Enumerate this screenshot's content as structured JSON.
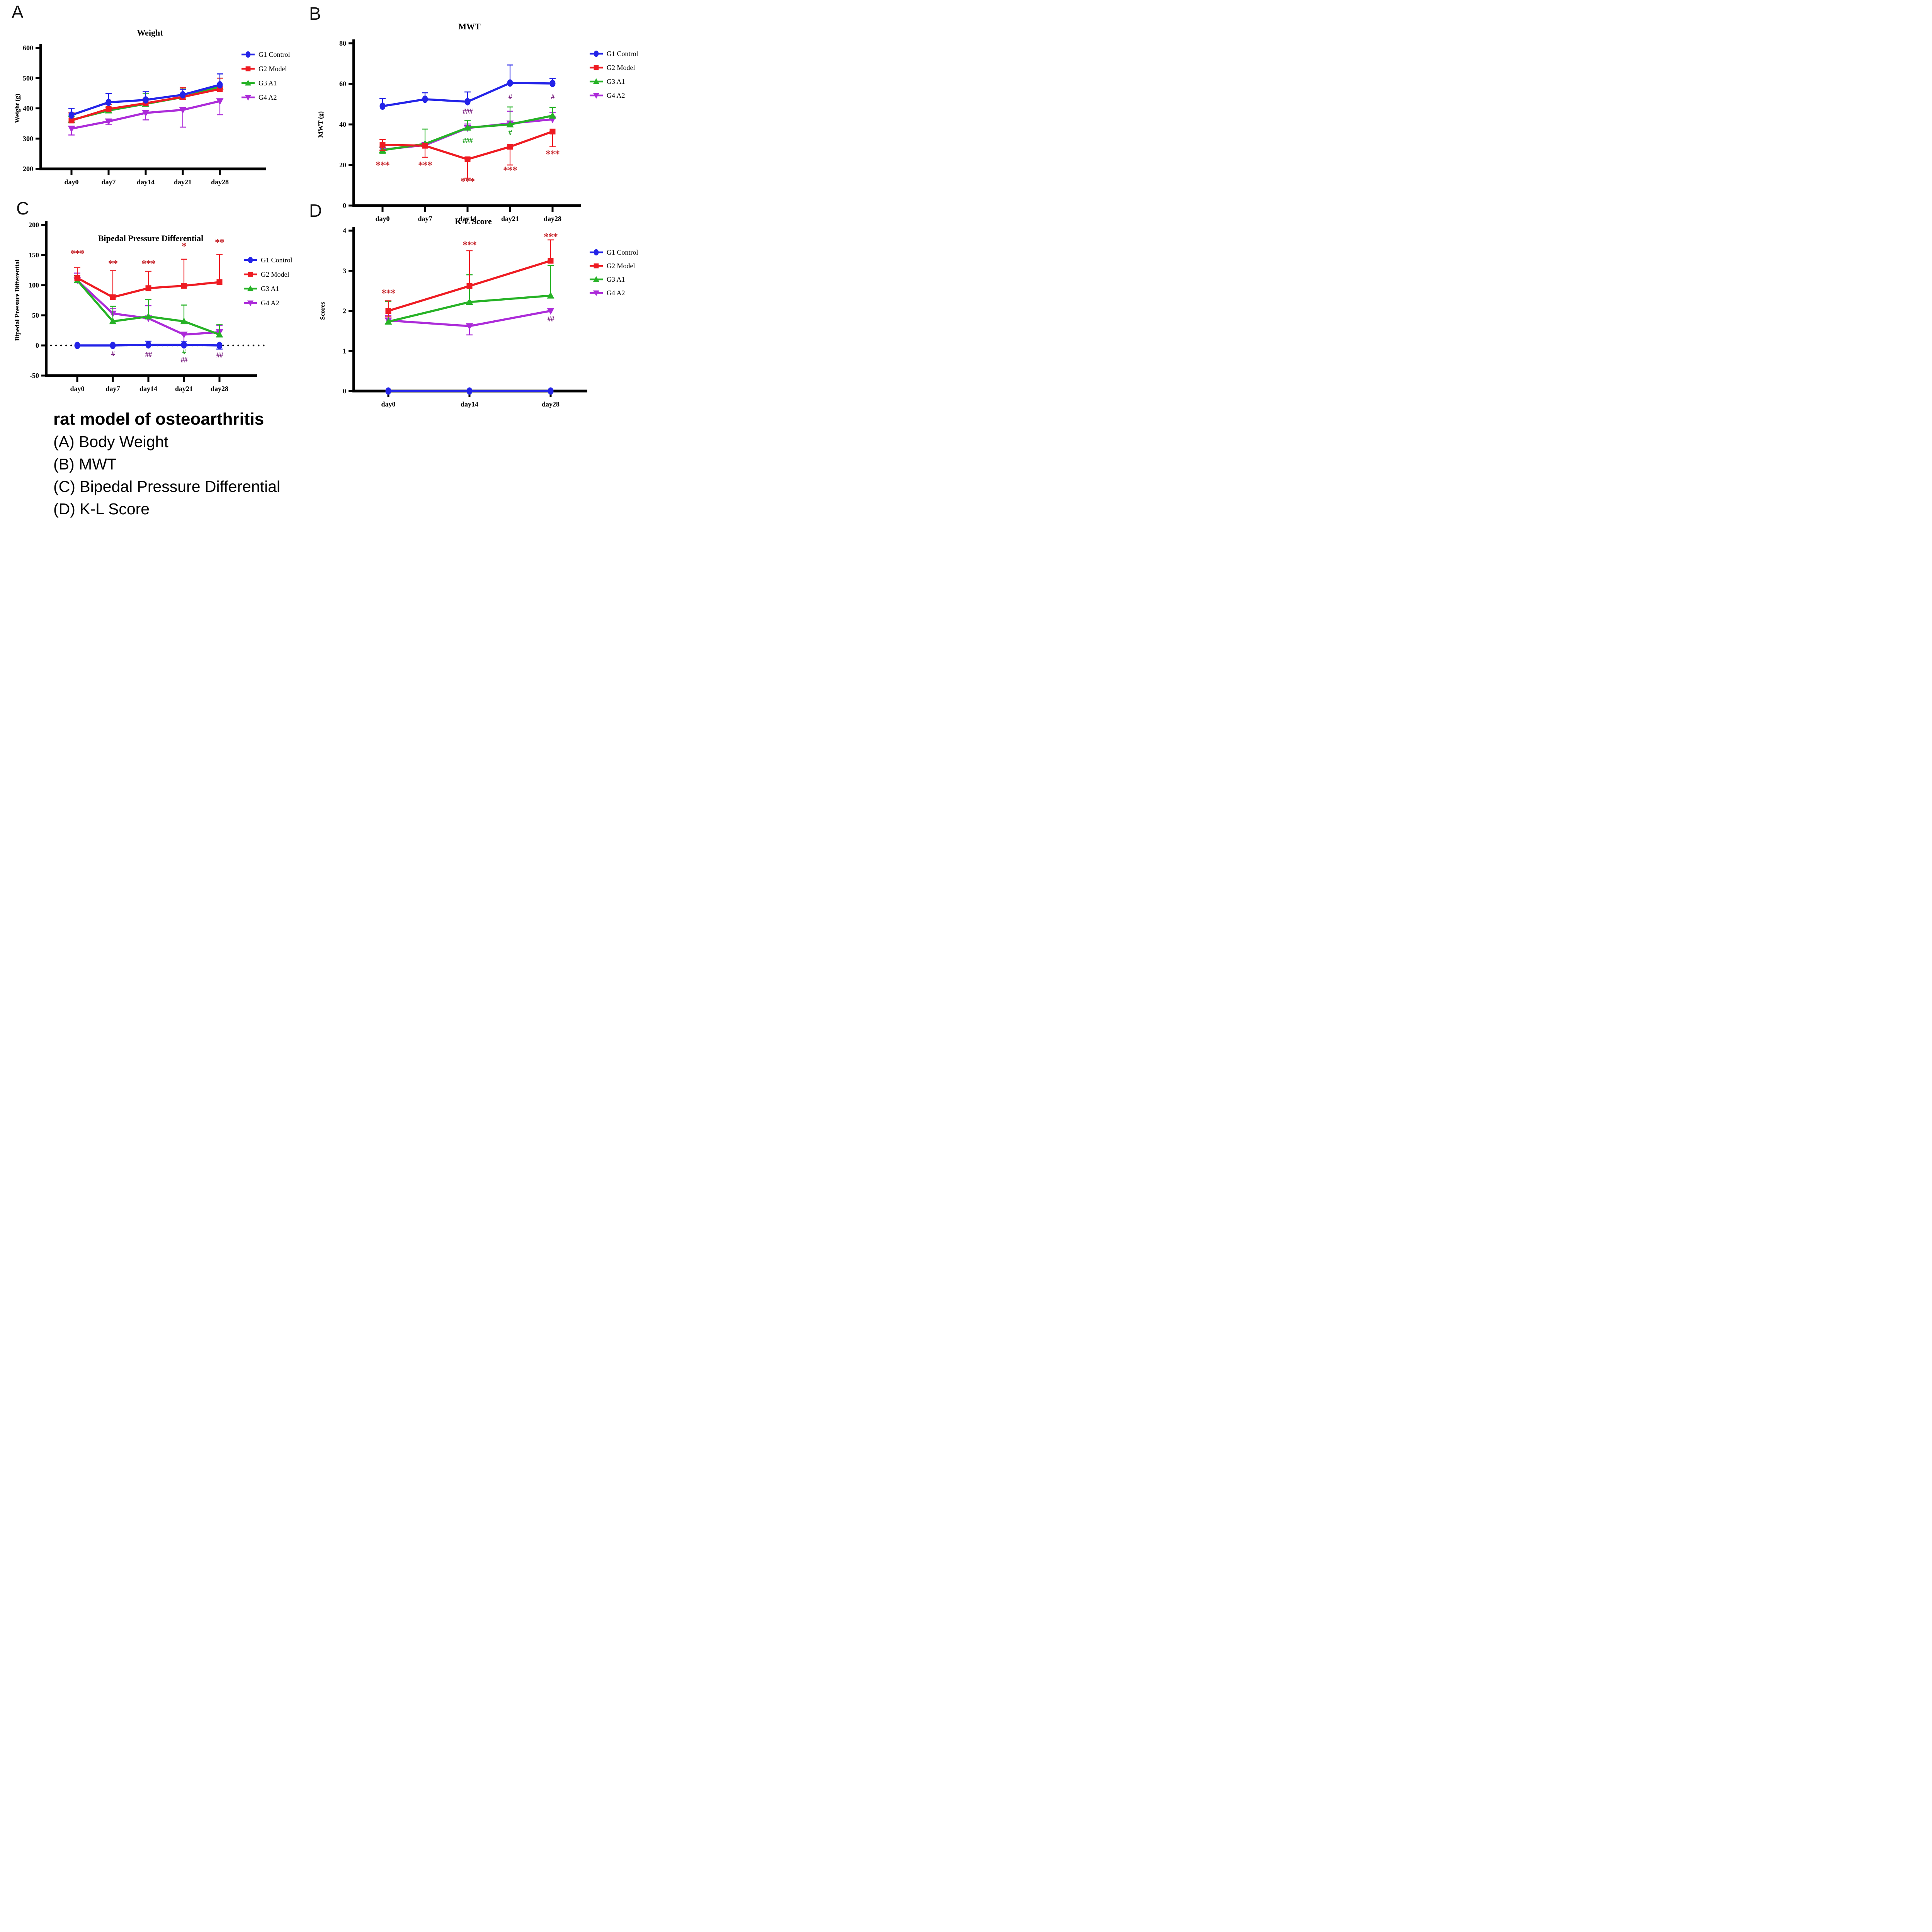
{
  "colors": {
    "blue": "#2323E8",
    "red": "#EE1B22",
    "green": "#26B226",
    "purple": "#AC2BD9",
    "star_red": "#C5262C",
    "hash_purple": "#7A2180",
    "hash_green": "#28A428",
    "axis": "#000000"
  },
  "caption": {
    "heading": "rat model of osteoarthritis",
    "lines": [
      "(A) Body Weight",
      "(B) MWT",
      "(C) Bipedal Pressure Differential",
      "(D) K-L Score"
    ]
  },
  "chart_data": [
    {
      "id": "a",
      "panel_letter": "A",
      "type": "line",
      "title": "Weight",
      "xlabel": "",
      "ylabel": "Weight (g)",
      "categories": [
        "day0",
        "day7",
        "day14",
        "day21",
        "day28"
      ],
      "ylim": [
        200,
        600
      ],
      "yticks": [
        200,
        300,
        400,
        500,
        600
      ],
      "legend_position": "right",
      "grid": false,
      "series": [
        {
          "name": "G1 Control",
          "color": "blue",
          "marker": "circle",
          "values": [
            378,
            420,
            428,
            445,
            478
          ],
          "err_up": [
            22,
            29,
            27,
            18,
            36
          ],
          "err_down": [
            0,
            0,
            0,
            0,
            0
          ]
        },
        {
          "name": "G2 Model",
          "color": "red",
          "marker": "square",
          "values": [
            360,
            398,
            417,
            438,
            464
          ],
          "err_up": [
            25,
            15,
            15,
            30,
            36
          ],
          "err_down": [
            0,
            0,
            0,
            0,
            0
          ]
        },
        {
          "name": "G3 A1",
          "color": "green",
          "marker": "triangle-up",
          "values": [
            362,
            393,
            415,
            437,
            472
          ],
          "err_up": [
            12,
            10,
            35,
            30,
            28
          ],
          "err_down": [
            0,
            0,
            0,
            0,
            0
          ]
        },
        {
          "name": "G4 A2",
          "color": "purple",
          "marker": "triangle-down",
          "values": [
            333,
            357,
            385,
            395,
            424
          ],
          "err_up": [
            0,
            0,
            0,
            0,
            0
          ],
          "err_down": [
            21,
            11,
            23,
            57,
            45
          ]
        }
      ],
      "annotations": []
    },
    {
      "id": "b",
      "panel_letter": "B",
      "type": "line",
      "title": "MWT",
      "xlabel": "",
      "ylabel": "MWT (g)",
      "categories": [
        "day0",
        "day7",
        "day14",
        "day21",
        "day28"
      ],
      "ylim": [
        0,
        80
      ],
      "yticks": [
        0,
        20,
        40,
        60,
        80
      ],
      "legend_position": "right",
      "grid": false,
      "series": [
        {
          "name": "G1 Control",
          "color": "blue",
          "marker": "circle",
          "values": [
            49,
            52.4,
            51.2,
            60.4,
            60.2
          ],
          "err_up": [
            3.8,
            3.2,
            4.8,
            8.9,
            2.4
          ],
          "err_down": [
            0,
            0,
            0,
            0,
            0
          ]
        },
        {
          "name": "G2 Model",
          "color": "red",
          "marker": "square",
          "values": [
            30,
            29.5,
            22.8,
            29,
            36.5
          ],
          "err_up": [
            2.6,
            0,
            0,
            0,
            0
          ],
          "err_down": [
            2.7,
            5.7,
            9.3,
            9,
            7.5
          ]
        },
        {
          "name": "G3 A1",
          "color": "green",
          "marker": "triangle-up",
          "values": [
            27.3,
            30.4,
            38.4,
            40,
            44.3
          ],
          "err_up": [
            1.5,
            7.3,
            3.6,
            8.6,
            4.1
          ],
          "err_down": [
            1.5,
            0,
            0,
            0,
            0
          ]
        },
        {
          "name": "G4 A2",
          "color": "purple",
          "marker": "triangle-down",
          "values": [
            27.6,
            29.8,
            38.2,
            40.5,
            42.5
          ],
          "err_up": [
            0,
            0,
            2,
            6,
            3.3
          ],
          "err_down": [
            0,
            0,
            0,
            0,
            0
          ]
        }
      ],
      "annotations": [
        {
          "x": 0,
          "y": 20,
          "text": "***",
          "color": "star_red"
        },
        {
          "x": 1,
          "y": 20,
          "text": "***",
          "color": "star_red"
        },
        {
          "x": 2,
          "y": 12,
          "text": "***",
          "color": "star_red"
        },
        {
          "x": 3,
          "y": 17.5,
          "text": "***",
          "color": "star_red"
        },
        {
          "x": 4,
          "y": 25.5,
          "text": "***",
          "color": "star_red"
        },
        {
          "x": 2,
          "y": 46.5,
          "text": "###",
          "color": "hash_purple"
        },
        {
          "x": 2,
          "y": 32,
          "text": "###",
          "color": "hash_green"
        },
        {
          "x": 3,
          "y": 53.5,
          "text": "#",
          "color": "hash_purple"
        },
        {
          "x": 3,
          "y": 36,
          "text": "#",
          "color": "hash_green"
        },
        {
          "x": 4,
          "y": 53.5,
          "text": "#",
          "color": "hash_purple"
        }
      ]
    },
    {
      "id": "c",
      "panel_letter": "C",
      "type": "line",
      "title": "Bipedal Pressure Differential",
      "xlabel": "",
      "ylabel": "Bipedal Pressure Differential",
      "categories": [
        "day0",
        "day7",
        "day14",
        "day21",
        "day28"
      ],
      "ylim": [
        -50,
        200
      ],
      "yticks": [
        -50,
        0,
        50,
        100,
        150,
        200
      ],
      "zero_line_dotted": true,
      "legend_position": "right",
      "grid": false,
      "series": [
        {
          "name": "G1 Control",
          "color": "blue",
          "marker": "circle",
          "values": [
            0,
            0,
            1,
            1,
            0
          ],
          "err_up": [
            0,
            0,
            6,
            5,
            0
          ],
          "err_down": [
            0,
            0,
            0,
            0,
            6
          ]
        },
        {
          "name": "G2 Model",
          "color": "red",
          "marker": "square",
          "values": [
            112,
            80,
            95,
            99,
            105
          ],
          "err_up": [
            17,
            44,
            28,
            44,
            46
          ],
          "err_down": [
            0,
            0,
            0,
            0,
            0
          ]
        },
        {
          "name": "G3 A1",
          "color": "green",
          "marker": "triangle-up",
          "values": [
            108,
            40,
            48,
            40,
            18
          ],
          "err_up": [
            8,
            25,
            28,
            27,
            17
          ],
          "err_down": [
            0,
            0,
            0,
            0,
            0
          ]
        },
        {
          "name": "G4 A2",
          "color": "purple",
          "marker": "triangle-down",
          "values": [
            108,
            53,
            45,
            18,
            22
          ],
          "err_up": [
            12,
            8,
            21,
            0,
            11
          ],
          "err_down": [
            0,
            0,
            0,
            16,
            0
          ]
        }
      ],
      "annotations": [
        {
          "x": 0,
          "y": 153,
          "text": "***",
          "color": "star_red"
        },
        {
          "x": 1,
          "y": 136,
          "text": "**",
          "color": "star_red"
        },
        {
          "x": 2,
          "y": 136,
          "text": "***",
          "color": "star_red"
        },
        {
          "x": 3,
          "y": 165,
          "text": "*",
          "color": "star_red"
        },
        {
          "x": 4,
          "y": 171,
          "text": "**",
          "color": "star_red"
        },
        {
          "x": 1,
          "y": -14,
          "text": "#",
          "color": "hash_purple"
        },
        {
          "x": 2,
          "y": -15,
          "text": "##",
          "color": "hash_purple"
        },
        {
          "x": 3,
          "y": -11,
          "text": "#",
          "color": "hash_green"
        },
        {
          "x": 3,
          "y": -24,
          "text": "##",
          "color": "hash_purple"
        },
        {
          "x": 4,
          "y": -16,
          "text": "##",
          "color": "hash_purple"
        }
      ]
    },
    {
      "id": "d",
      "panel_letter": "D",
      "type": "line",
      "title": "K-L Score",
      "xlabel": "",
      "ylabel": "Scores",
      "categories": [
        "day0",
        "day14",
        "day28"
      ],
      "ylim": [
        0,
        4
      ],
      "yticks": [
        0,
        1,
        2,
        3,
        4
      ],
      "legend_position": "right",
      "grid": false,
      "series": [
        {
          "name": "G1 Control",
          "color": "blue",
          "marker": "circle",
          "values": [
            0,
            0,
            0
          ],
          "err_up": [
            0,
            0,
            0
          ],
          "err_down": [
            0,
            0,
            0
          ]
        },
        {
          "name": "G2 Model",
          "color": "red",
          "marker": "square",
          "values": [
            2.0,
            2.62,
            3.25
          ],
          "err_up": [
            0.25,
            0.88,
            0.52
          ],
          "err_down": [
            0.15,
            0,
            0
          ]
        },
        {
          "name": "G3 A1",
          "color": "green",
          "marker": "triangle-up",
          "values": [
            1.73,
            2.22,
            2.38
          ],
          "err_up": [
            0.5,
            0.68,
            0.75
          ],
          "err_down": [
            0,
            0,
            0
          ]
        },
        {
          "name": "G4 A2",
          "color": "purple",
          "marker": "triangle-down",
          "values": [
            1.76,
            1.62,
            2.0
          ],
          "err_up": [
            0.12,
            0,
            0
          ],
          "err_down": [
            0,
            0.22,
            0
          ]
        }
      ],
      "annotations": [
        {
          "x": 0,
          "y": 2.45,
          "text": "***",
          "color": "star_red"
        },
        {
          "x": 1,
          "y": 3.65,
          "text": "***",
          "color": "star_red"
        },
        {
          "x": 2,
          "y": 3.85,
          "text": "***",
          "color": "star_red"
        },
        {
          "x": 2,
          "y": 1.8,
          "text": "##",
          "color": "hash_purple"
        }
      ]
    }
  ]
}
